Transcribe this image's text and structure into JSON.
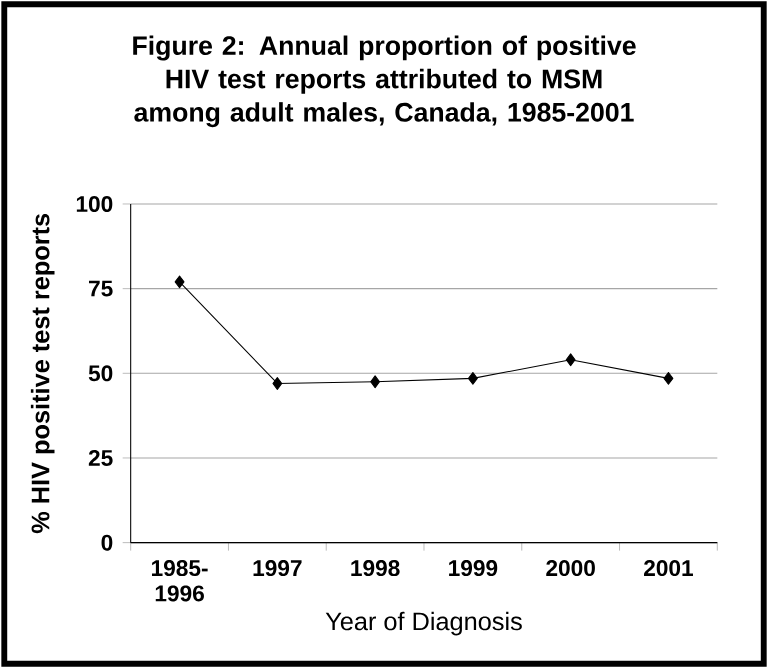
{
  "chart_data": {
    "type": "line",
    "title": "Figure 2: Annual proportion of positive HIV test reports attributed to MSM among adult males, Canada, 1985-2001",
    "xlabel": "Year of Diagnosis",
    "ylabel": "% HIV positive test reports",
    "categories": [
      "1985-1996",
      "1997",
      "1998",
      "1999",
      "2000",
      "2001"
    ],
    "values": [
      77,
      47,
      47.5,
      48.5,
      54,
      48.5
    ],
    "color": "#000000",
    "ylim": [
      0,
      100
    ],
    "yticks": [
      0,
      25,
      50,
      75,
      100
    ],
    "grid": "y",
    "marker": "diamond",
    "line_style": "solid"
  }
}
